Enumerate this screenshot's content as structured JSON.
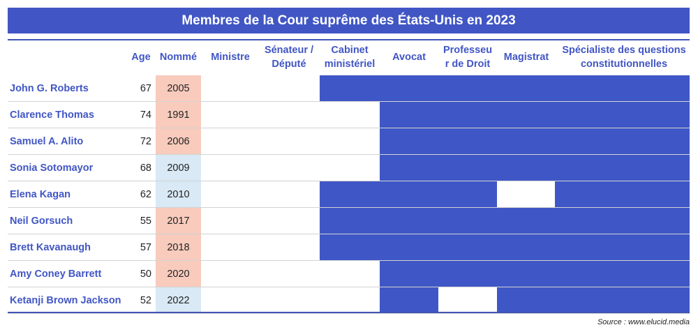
{
  "title": "Membres de la Cour suprême des États-Unis en 2023",
  "columns": [
    {
      "key": "age",
      "label": "Age"
    },
    {
      "key": "nomme",
      "label": "Nommé"
    },
    {
      "key": "ministre",
      "label": "Ministre"
    },
    {
      "key": "senateur",
      "label": "Sénateur /\nDéputé"
    },
    {
      "key": "cabinet",
      "label": "Cabinet\nministériel"
    },
    {
      "key": "avocat",
      "label": "Avocat"
    },
    {
      "key": "professeur",
      "label": "Professeu\nr de Droit"
    },
    {
      "key": "magistrat",
      "label": "Magistrat"
    },
    {
      "key": "specialiste",
      "label": "Spécialiste des questions\nconstitutionnelles"
    }
  ],
  "colors": {
    "accent": "#4156c4",
    "filled": "#3f57c6",
    "nomme_republican": "#f8cbbd",
    "nomme_democrat": "#d9e9f5"
  },
  "chart_data": {
    "type": "table",
    "title": "Membres de la Cour suprême des États-Unis en 2023",
    "experience_columns": [
      "Ministre",
      "Sénateur / Député",
      "Cabinet ministériel",
      "Avocat",
      "Professeur de Droit",
      "Magistrat",
      "Spécialiste des questions constitutionnelles"
    ],
    "rows": [
      {
        "name": "John G. Roberts",
        "age": "67",
        "year": "2005",
        "nominated_by": "republican",
        "experience": [
          0,
          0,
          1,
          1,
          1,
          1,
          1
        ]
      },
      {
        "name": "Clarence Thomas",
        "age": "74",
        "year": "1991",
        "nominated_by": "republican",
        "experience": [
          0,
          0,
          0,
          1,
          1,
          1,
          1
        ]
      },
      {
        "name": "Samuel A. Alito",
        "age": "72",
        "year": "2006",
        "nominated_by": "republican",
        "experience": [
          0,
          0,
          0,
          1,
          1,
          1,
          1
        ]
      },
      {
        "name": "Sonia Sotomayor",
        "age": "68",
        "year": "2009",
        "nominated_by": "democrat",
        "experience": [
          0,
          0,
          0,
          1,
          1,
          1,
          1
        ]
      },
      {
        "name": "Elena Kagan",
        "age": "62",
        "year": "2010",
        "nominated_by": "democrat",
        "experience": [
          0,
          0,
          1,
          1,
          1,
          0,
          1
        ]
      },
      {
        "name": "Neil Gorsuch",
        "age": "55",
        "year": "2017",
        "nominated_by": "republican",
        "experience": [
          0,
          0,
          1,
          1,
          1,
          1,
          1
        ]
      },
      {
        "name": "Brett Kavanaugh",
        "age": "57",
        "year": "2018",
        "nominated_by": "republican",
        "experience": [
          0,
          0,
          1,
          1,
          1,
          1,
          1
        ]
      },
      {
        "name": "Amy Coney Barrett",
        "age": "50",
        "year": "2020",
        "nominated_by": "republican",
        "experience": [
          0,
          0,
          0,
          1,
          1,
          1,
          1
        ]
      },
      {
        "name": "Ketanji Brown Jackson",
        "age": "52",
        "year": "2022",
        "nominated_by": "democrat",
        "experience": [
          0,
          0,
          0,
          1,
          0,
          1,
          1
        ]
      }
    ]
  },
  "source": "Source : www.elucid.media"
}
